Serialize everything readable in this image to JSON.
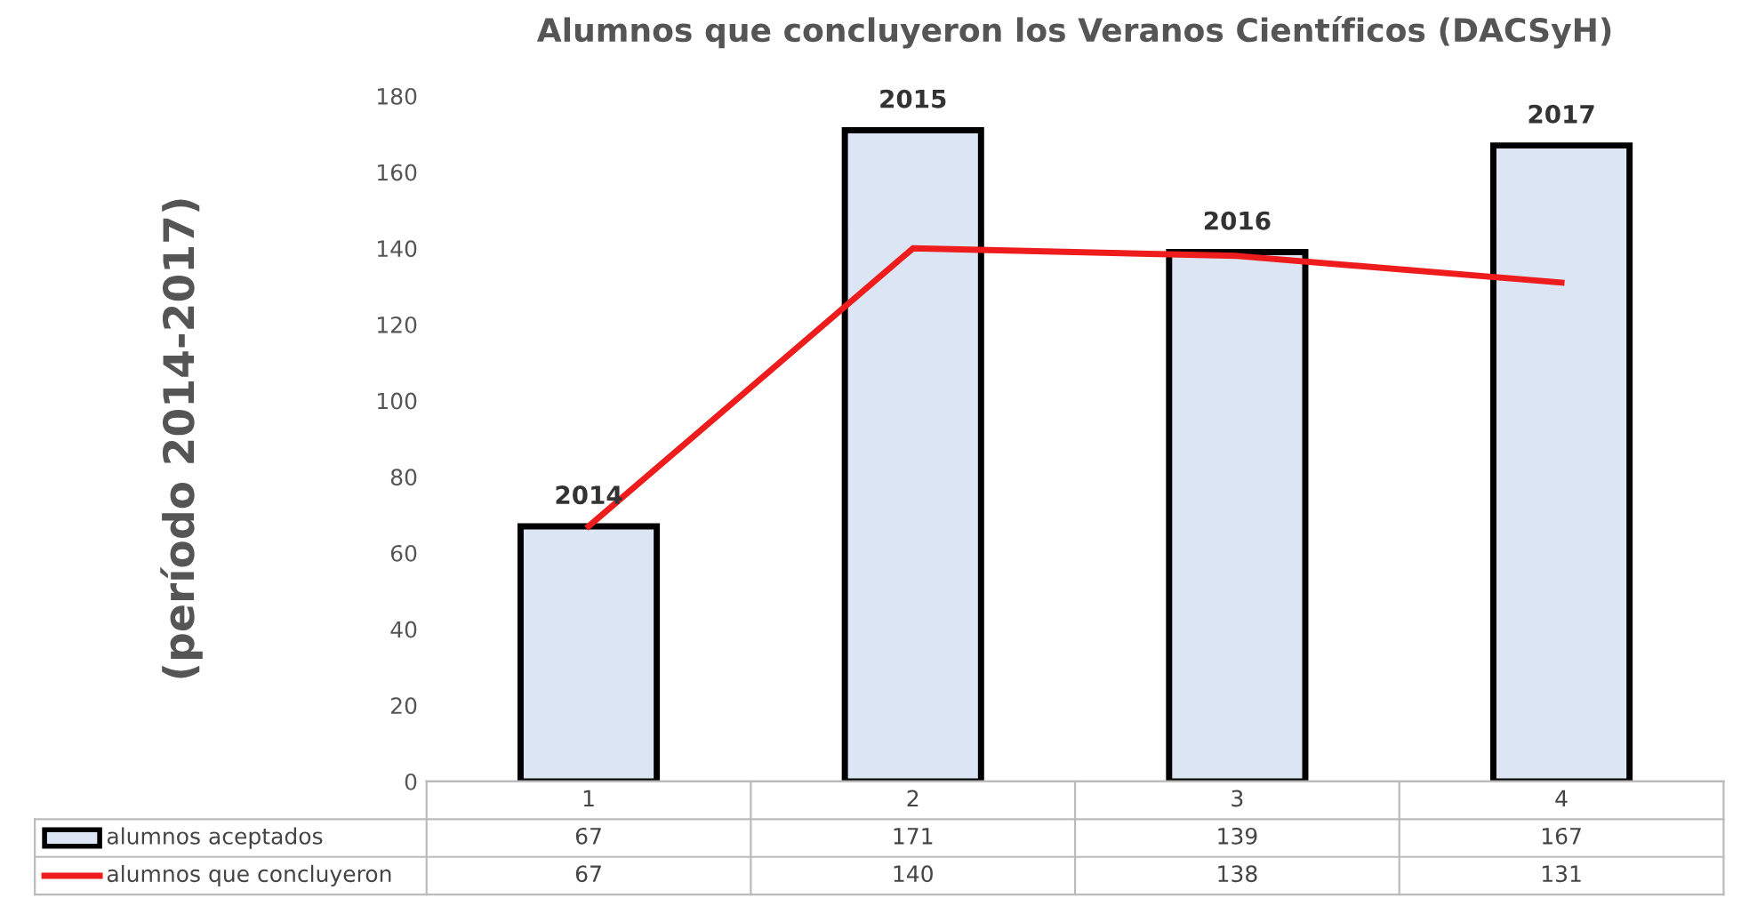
{
  "chart_data": {
    "type": "bar",
    "title": "Alumnos que concluyeron los Veranos Científicos (DACSyH)",
    "ylabel": "(período 2014-2017)",
    "categories": [
      "1",
      "2",
      "3",
      "4"
    ],
    "series": [
      {
        "name": "alumnos aceptados",
        "color": "#dbe5f3",
        "values": [
          67,
          171,
          139,
          167
        ]
      },
      {
        "name": "alumnos que concluyeron",
        "type": "line",
        "color": "#ee1c1c",
        "values": [
          67,
          140,
          138,
          131
        ]
      }
    ],
    "ylim": [
      0,
      180
    ],
    "yticks": [
      0,
      20,
      40,
      60,
      80,
      100,
      120,
      140,
      160,
      180
    ],
    "grid": false,
    "legend": "bottom",
    "data_labels": true,
    "marker": "none",
    "line_style": "solid",
    "annotations": [
      {
        "text": "2014",
        "x": "1",
        "y": 67
      },
      {
        "text": "2015",
        "x": "2",
        "y": 171
      },
      {
        "text": "2016",
        "x": "3",
        "y": 139
      },
      {
        "text": "2017",
        "x": "4",
        "y": 167
      }
    ]
  }
}
